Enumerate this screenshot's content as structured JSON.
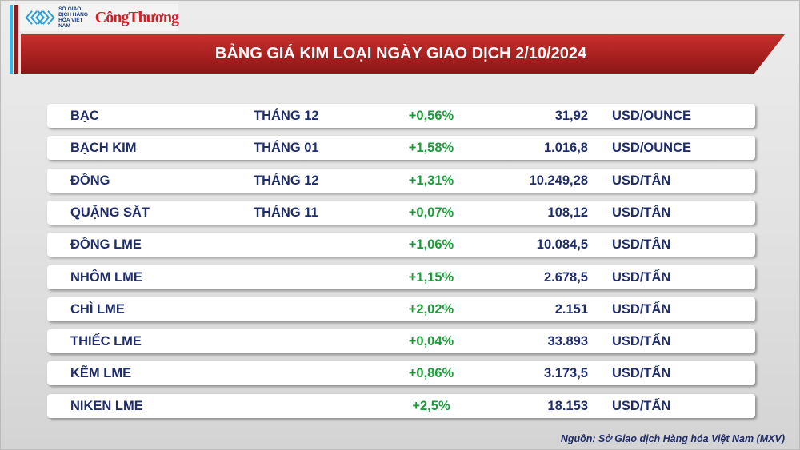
{
  "logo": {
    "org_text": "SỞ GIAO DỊCH HÀNG HÓA VIỆT NAM",
    "brand": "CôngThương"
  },
  "title": "BẢNG GIÁ KIM LOẠI NGÀY GIAO DỊCH 2/10/2024",
  "colors": {
    "banner": "#b02424",
    "text": "#1f2d6b",
    "positive": "#1e9a3c"
  },
  "rows": [
    {
      "name": "BẠC",
      "month": "THÁNG 12",
      "change": "+0,56%",
      "price": "31,92",
      "unit": "USD/OUNCE"
    },
    {
      "name": "BẠCH KIM",
      "month": "THÁNG 01",
      "change": "+1,58%",
      "price": "1.016,8",
      "unit": "USD/OUNCE"
    },
    {
      "name": "ĐỒNG",
      "month": "THÁNG 12",
      "change": "+1,31%",
      "price": "10.249,28",
      "unit": "USD/TẤN"
    },
    {
      "name": "QUẶNG SẮT",
      "month": "THÁNG 11",
      "change": "+0,07%",
      "price": "108,12",
      "unit": "USD/TẤN"
    },
    {
      "name": "ĐỒNG LME",
      "month": "",
      "change": "+1,06%",
      "price": "10.084,5",
      "unit": "USD/TẤN"
    },
    {
      "name": "NHÔM LME",
      "month": "",
      "change": "+1,15%",
      "price": "2.678,5",
      "unit": "USD/TẤN"
    },
    {
      "name": "CHÌ LME",
      "month": "",
      "change": "+2,02%",
      "price": "2.151",
      "unit": "USD/TẤN"
    },
    {
      "name": "THIẾC LME",
      "month": "",
      "change": "+0,04%",
      "price": "33.893",
      "unit": "USD/TẤN"
    },
    {
      "name": "KẼM LME",
      "month": "",
      "change": "+0,86%",
      "price": "3.173,5",
      "unit": "USD/TẤN"
    },
    {
      "name": "NIKEN LME",
      "month": "",
      "change": "+2,5%",
      "price": "18.153",
      "unit": "USD/TẤN"
    }
  ],
  "source": "Nguồn: Sở Giao dịch Hàng hóa Việt Nam (MXV)"
}
